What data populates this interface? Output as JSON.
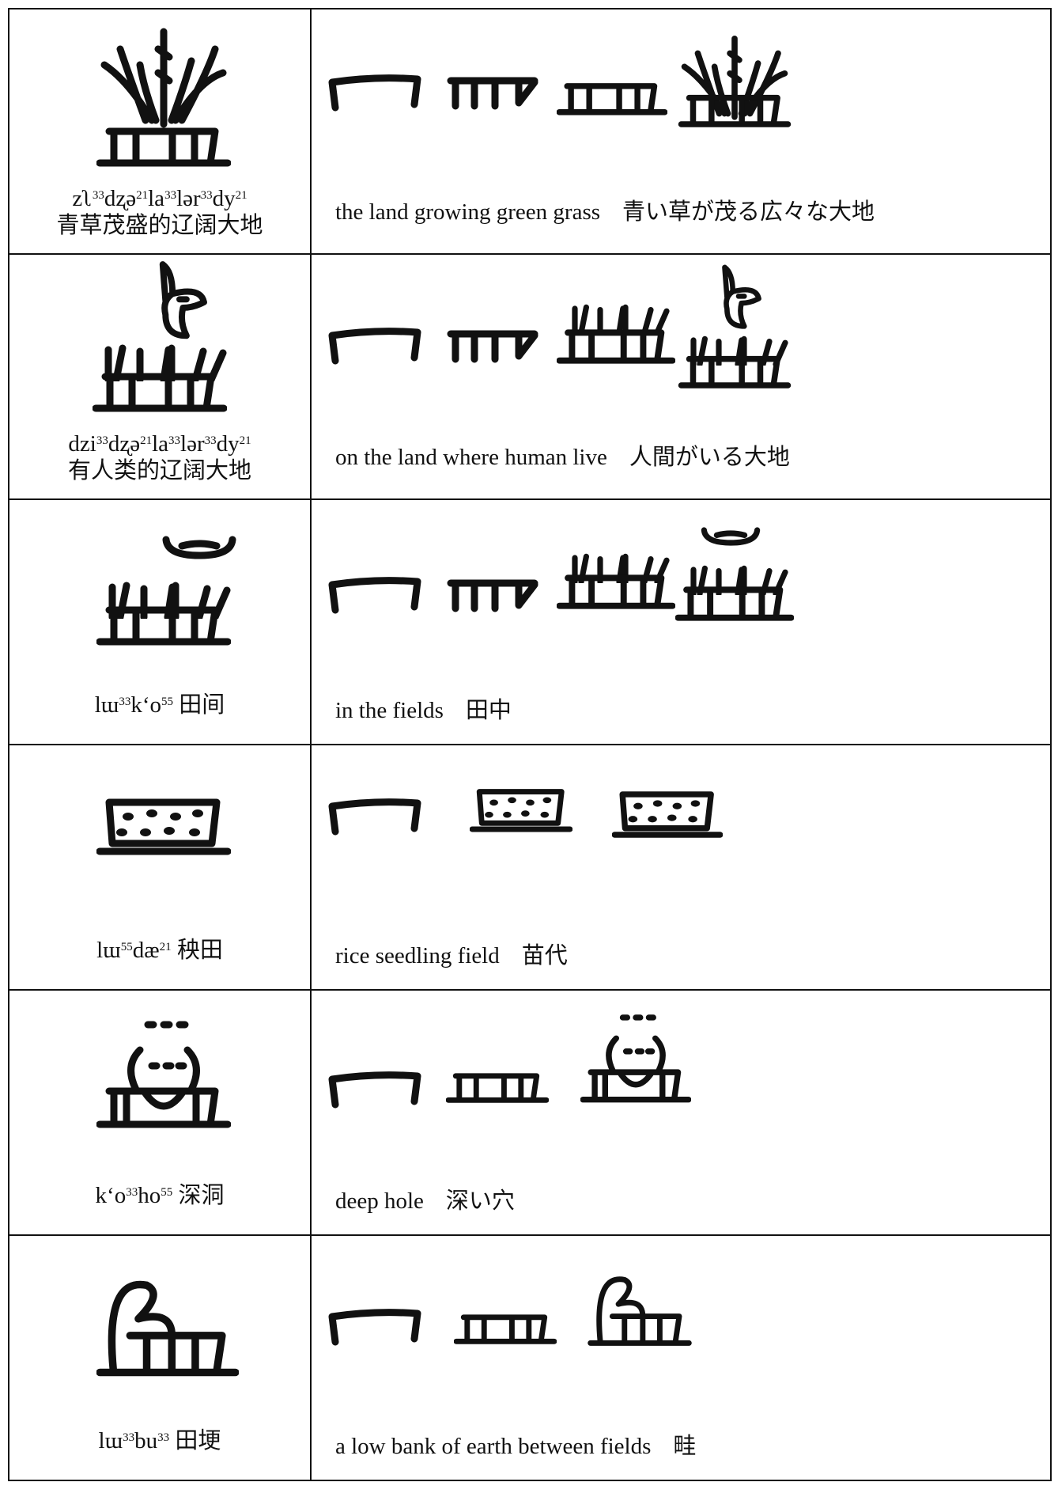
{
  "table": {
    "rows": [
      {
        "phonetic": [
          {
            "base": "zʅ",
            "tone": "33"
          },
          {
            "base": "dʐə",
            "tone": "21"
          },
          {
            "base": "la",
            "tone": "33"
          },
          {
            "base": "lər",
            "tone": "33"
          },
          {
            "base": "dy",
            "tone": "21"
          }
        ],
        "chinese": "青草茂盛的辽阔大地",
        "english": "the land growing green grass",
        "japanese": "青い草が茂る広々な大地"
      },
      {
        "phonetic": [
          {
            "base": "dzi",
            "tone": "33"
          },
          {
            "base": "dʐə",
            "tone": "21"
          },
          {
            "base": "la",
            "tone": "33"
          },
          {
            "base": "lər",
            "tone": "33"
          },
          {
            "base": "dy",
            "tone": "21"
          }
        ],
        "chinese": "有人类的辽阔大地",
        "english": "on the land where human live",
        "japanese": "人間がいる大地"
      },
      {
        "phonetic": [
          {
            "base": "lɯ",
            "tone": "33"
          },
          {
            "base": "kʻo",
            "tone": "55"
          }
        ],
        "chinese": "田间",
        "english": "in the fields",
        "japanese": "田中"
      },
      {
        "phonetic": [
          {
            "base": "lɯ",
            "tone": "55"
          },
          {
            "base": "dæ",
            "tone": "21"
          }
        ],
        "chinese": "秧田",
        "english": "rice seedling field",
        "japanese": "苗代"
      },
      {
        "phonetic": [
          {
            "base": "kʻo",
            "tone": "33"
          },
          {
            "base": "ho",
            "tone": "55"
          }
        ],
        "chinese": "深洞",
        "english": "deep hole",
        "japanese": "深い穴"
      },
      {
        "phonetic": [
          {
            "base": "lɯ",
            "tone": "33"
          },
          {
            "base": "bu",
            "tone": "33"
          }
        ],
        "chinese": "田埂",
        "english": "a low bank of earth between fields",
        "japanese": "畦"
      }
    ]
  }
}
